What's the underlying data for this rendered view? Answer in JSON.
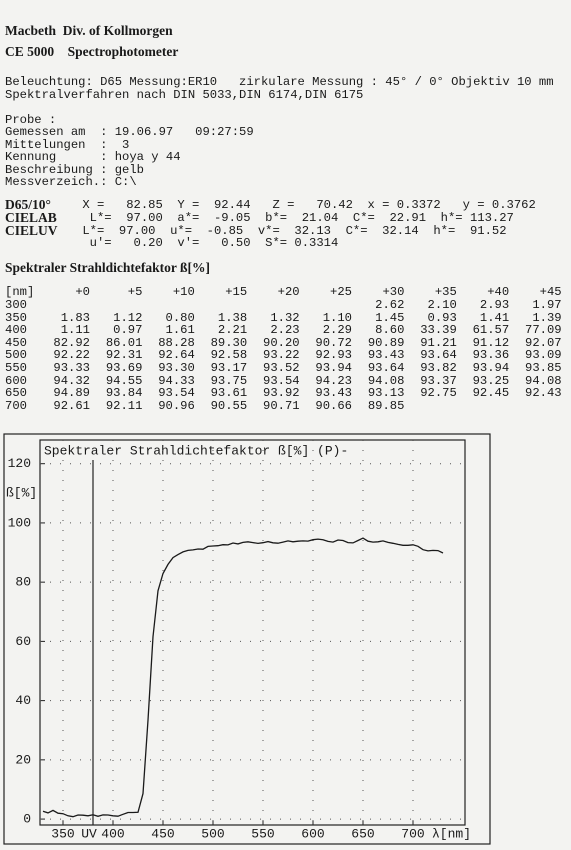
{
  "header": {
    "company": "Macbeth  Div. of Kollmorgen",
    "model": "CE 5000    Spectrophotometer"
  },
  "conditions": [
    "Beleuchtung: D65 Messung:ER10   zirkulare Messung : 45° / 0° Objektiv 10 mm",
    "Spektralverfahren nach DIN 5033,DIN 6174,DIN 6175"
  ],
  "sample": [
    "Probe :",
    "Gemessen am  : 19.06.97   09:27:59",
    "Mittelungen  :  3",
    "Kennung      : hoya y 44",
    "Beschreibung : gelb",
    "Messverzeich.: C:\\"
  ],
  "colorimetry": [
    {
      "label": "D65/10°",
      "text": " X =   82.85  Y =  92.44   Z =   70.42  x = 0.3372   y = 0.3762"
    },
    {
      "label": "CIELAB",
      "text": "  L*=  97.00  a*=  -9.05  b*=  21.04  C*=  22.91  h*= 113.27"
    },
    {
      "label": "CIELUV",
      "text": " L*=  97.00  u*=  -0.85  v*=  32.13  C*=  32.14  h*=  91.52"
    },
    {
      "text": "  u'=   0.20  v'=   0.50  S*= 0.3314"
    }
  ],
  "table": {
    "title": "Spektraler Strahldichtefaktor ß[%]",
    "columns": [
      "[nm]",
      "+0",
      "+5",
      "+10",
      "+15",
      "+20",
      "+25",
      "+30",
      "+35",
      "+40",
      "+45"
    ],
    "rows": [
      [
        "300",
        null,
        null,
        null,
        null,
        null,
        null,
        "2.62",
        "2.10",
        "2.93",
        "1.97"
      ],
      [
        "350",
        "1.83",
        "1.12",
        "0.80",
        "1.38",
        "1.32",
        "1.10",
        "1.45",
        "0.93",
        "1.41",
        "1.39"
      ],
      [
        "400",
        "1.11",
        "0.97",
        "1.61",
        "2.21",
        "2.23",
        "2.29",
        "8.60",
        "33.39",
        "61.57",
        "77.09"
      ],
      [
        "450",
        "82.92",
        "86.01",
        "88.28",
        "89.30",
        "90.20",
        "90.72",
        "90.89",
        "91.21",
        "91.12",
        "92.07"
      ],
      [
        "500",
        "92.22",
        "92.31",
        "92.64",
        "92.58",
        "93.22",
        "92.93",
        "93.43",
        "93.64",
        "93.36",
        "93.09"
      ],
      [
        "550",
        "93.33",
        "93.69",
        "93.30",
        "93.17",
        "93.52",
        "93.94",
        "93.64",
        "93.82",
        "93.94",
        "93.85"
      ],
      [
        "600",
        "94.32",
        "94.55",
        "94.33",
        "93.75",
        "93.54",
        "94.23",
        "94.08",
        "93.37",
        "93.25",
        "94.08"
      ],
      [
        "650",
        "94.89",
        "93.84",
        "93.54",
        "93.61",
        "93.92",
        "93.43",
        "93.13",
        "92.75",
        "92.45",
        "92.43"
      ],
      [
        "700",
        "92.61",
        "92.11",
        "90.96",
        "90.55",
        "90.71",
        "90.66",
        "89.85",
        null,
        null,
        null
      ]
    ]
  },
  "chart": {
    "type": "line",
    "title": "Spektraler Strahldichtefaktor ß[%]   (P)-",
    "y_label": "ß[%]",
    "x_label": "λ[nm]",
    "uv_label": "UV",
    "uv_boundary": 380,
    "color": "#1a1a1a",
    "grid": true,
    "xlim": [
      327,
      752
    ],
    "ylim": [
      -2,
      128
    ],
    "xticks": [
      350,
      400,
      450,
      500,
      550,
      600,
      650,
      700
    ],
    "yticks": [
      0,
      20,
      40,
      60,
      80,
      100,
      120
    ],
    "x": [
      330,
      335,
      340,
      345,
      350,
      355,
      360,
      365,
      370,
      375,
      380,
      385,
      390,
      395,
      400,
      405,
      410,
      415,
      420,
      425,
      430,
      435,
      440,
      445,
      450,
      455,
      460,
      465,
      470,
      475,
      480,
      485,
      490,
      495,
      500,
      505,
      510,
      515,
      520,
      525,
      530,
      535,
      540,
      545,
      550,
      555,
      560,
      565,
      570,
      575,
      580,
      585,
      590,
      595,
      600,
      605,
      610,
      615,
      620,
      625,
      630,
      635,
      640,
      645,
      650,
      655,
      660,
      665,
      670,
      675,
      680,
      685,
      690,
      695,
      700,
      705,
      710,
      715,
      720,
      725,
      730
    ],
    "values": [
      2.62,
      2.1,
      2.93,
      1.97,
      1.83,
      1.12,
      0.8,
      1.38,
      1.32,
      1.1,
      1.45,
      0.93,
      1.41,
      1.39,
      1.11,
      0.97,
      1.61,
      2.21,
      2.23,
      2.29,
      8.6,
      33.39,
      61.57,
      77.09,
      82.92,
      86.01,
      88.28,
      89.3,
      90.2,
      90.72,
      90.89,
      91.21,
      91.12,
      92.07,
      92.22,
      92.31,
      92.64,
      92.58,
      93.22,
      92.93,
      93.43,
      93.64,
      93.36,
      93.09,
      93.33,
      93.69,
      93.3,
      93.17,
      93.52,
      93.94,
      93.64,
      93.82,
      93.94,
      93.85,
      94.32,
      94.55,
      94.33,
      93.75,
      93.54,
      94.23,
      94.08,
      93.37,
      93.25,
      94.08,
      94.89,
      93.84,
      93.54,
      93.61,
      93.92,
      93.43,
      93.13,
      92.75,
      92.45,
      92.43,
      92.61,
      92.11,
      90.96,
      90.55,
      90.71,
      90.66,
      89.85
    ]
  }
}
